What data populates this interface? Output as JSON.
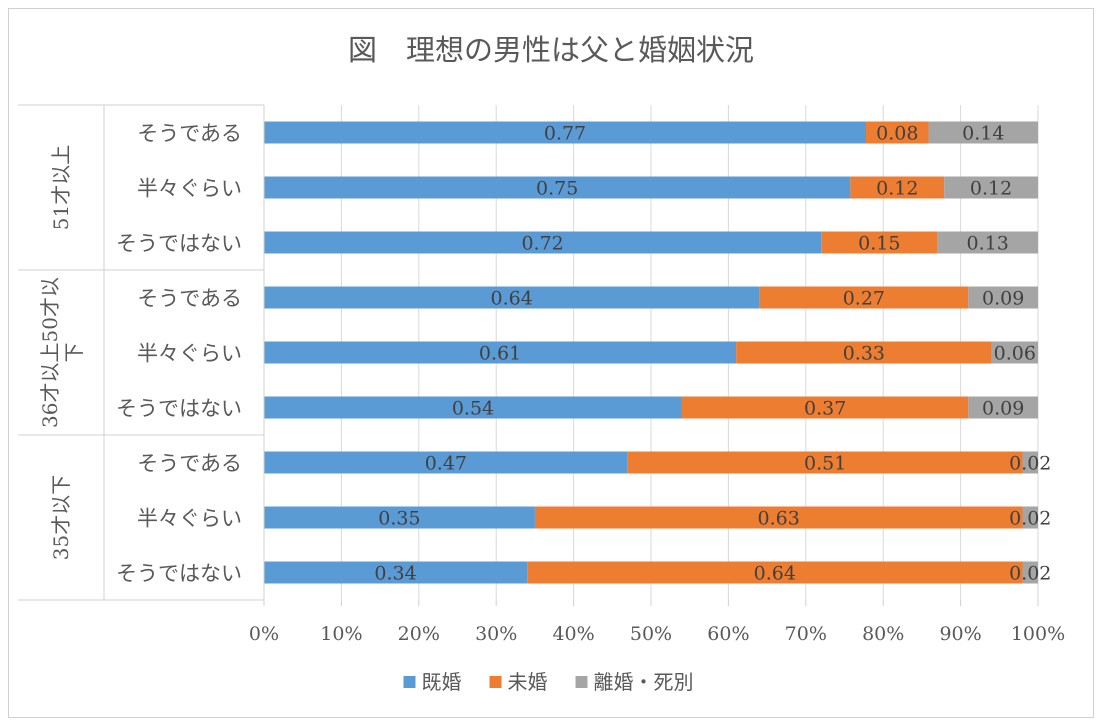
{
  "chart_data": {
    "type": "bar",
    "orientation": "horizontal",
    "stacked": "percent",
    "title": "図　理想の男性は父と婚姻状況",
    "groups": [
      {
        "label": "51才以上",
        "categories": [
          "そうである",
          "半々ぐらい",
          "そうではない"
        ]
      },
      {
        "label": "36才以上50才以下",
        "categories": [
          "そうである",
          "半々ぐらい",
          "そうではない"
        ]
      },
      {
        "label": "35才以下",
        "categories": [
          "そうである",
          "半々ぐらい",
          "そうではない"
        ]
      }
    ],
    "series": [
      {
        "name": "既婚",
        "color": "#5b9bd5",
        "values": [
          0.77,
          0.75,
          0.72,
          0.64,
          0.61,
          0.54,
          0.47,
          0.35,
          0.34
        ]
      },
      {
        "name": "未婚",
        "color": "#ed7d31",
        "values": [
          0.08,
          0.12,
          0.15,
          0.27,
          0.33,
          0.37,
          0.51,
          0.63,
          0.64
        ]
      },
      {
        "name": "離婚・死別",
        "color": "#a5a5a5",
        "values": [
          0.14,
          0.12,
          0.13,
          0.09,
          0.06,
          0.09,
          0.02,
          0.02,
          0.02
        ]
      }
    ],
    "x_ticks": [
      "0%",
      "10%",
      "20%",
      "30%",
      "40%",
      "50%",
      "60%",
      "70%",
      "80%",
      "90%",
      "100%"
    ],
    "xlim": [
      0,
      1
    ],
    "grid": true,
    "legend_position": "bottom"
  }
}
